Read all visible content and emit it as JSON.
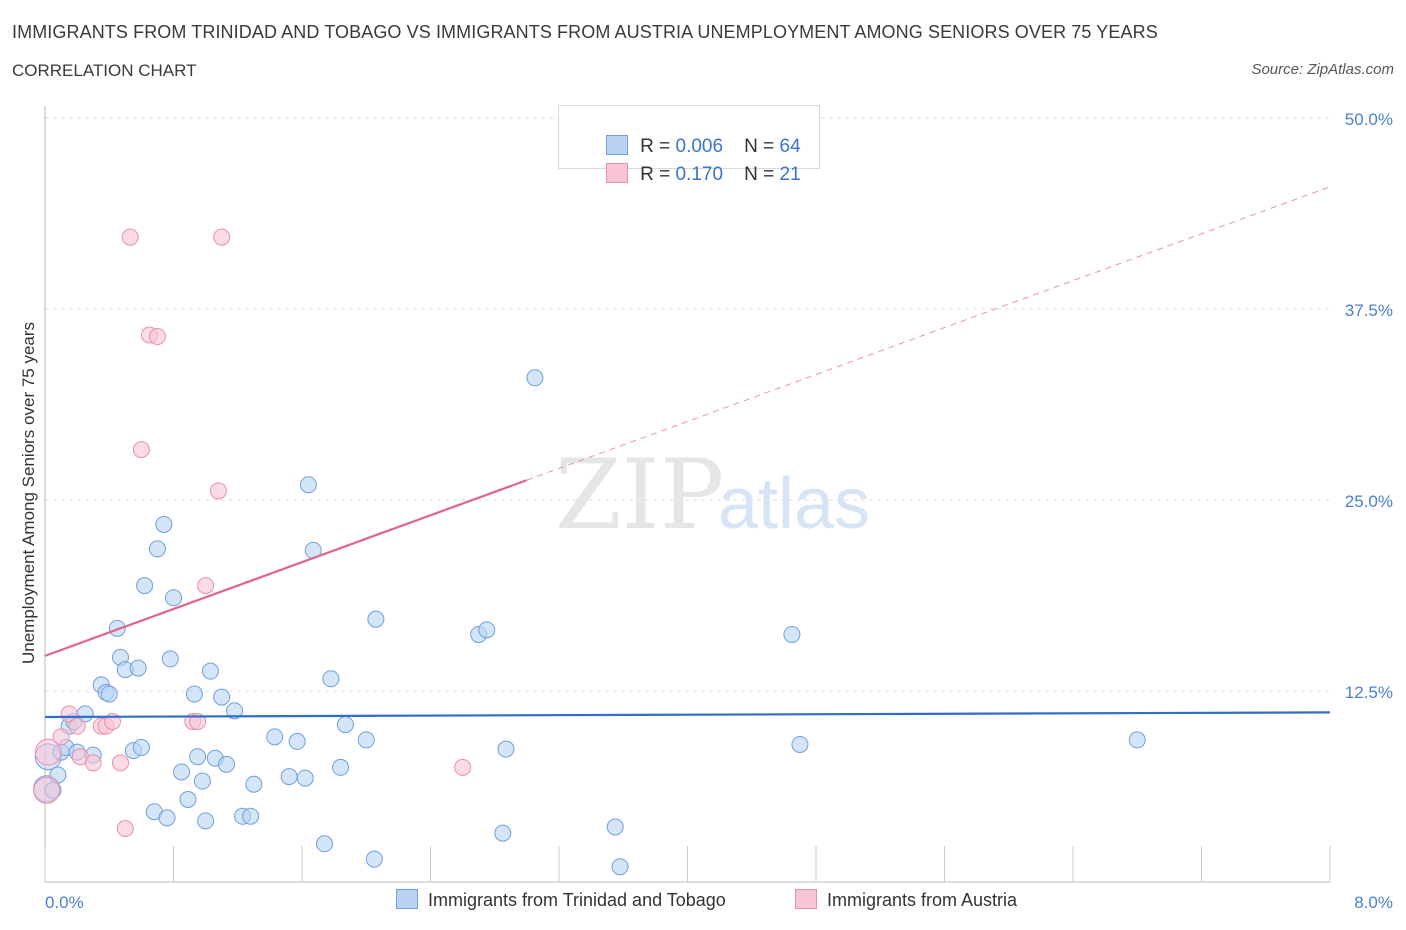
{
  "header": {
    "title": "IMMIGRANTS FROM TRINIDAD AND TOBAGO VS IMMIGRANTS FROM AUSTRIA UNEMPLOYMENT AMONG SENIORS OVER 75 YEARS",
    "subtitle": "CORRELATION CHART",
    "source": "Source: ZipAtlas.com"
  },
  "legend": {
    "rows": [
      {
        "r_label": "R = ",
        "r_value": "0.006",
        "n_label": "N = ",
        "n_value": "64"
      },
      {
        "r_label": "R = ",
        "r_value": "0.170",
        "n_label": "N = ",
        "n_value": "21"
      }
    ]
  },
  "colors": {
    "blue_fill": "#b9d3f4",
    "blue_stroke": "#6f9fdc",
    "blue_line": "#2f6fc6",
    "pink_fill": "#f8c5d5",
    "pink_stroke": "#e890ac",
    "pink_line": "#e0648e",
    "tick_text": "#4a7fd0",
    "grid": "#dcdcdc"
  },
  "watermark": {
    "zip": "ZIP",
    "atlas": "atlas"
  },
  "chart_data": {
    "type": "scatter",
    "xlabel": "",
    "ylabel": "Unemployment Among Seniors over 75 years",
    "xlim": [
      0,
      8
    ],
    "ylim": [
      0,
      50
    ],
    "x_tick_labels": [
      "0.0%",
      "8.0%"
    ],
    "y_ticks": [
      12.5,
      25.0,
      37.5,
      50.0
    ],
    "y_tick_labels": [
      "12.5%",
      "25.0%",
      "37.5%",
      "50.0%"
    ],
    "grid": true,
    "series": [
      {
        "name": "Immigrants from Trinidad and Tobago",
        "color": "blue",
        "trend": {
          "x": [
            0,
            8
          ],
          "y": [
            10.8,
            11.1
          ],
          "style": "solid"
        },
        "points": [
          [
            0.05,
            6.0
          ],
          [
            0.08,
            7.0
          ],
          [
            0.1,
            8.5
          ],
          [
            0.13,
            8.8
          ],
          [
            0.15,
            10.2
          ],
          [
            0.18,
            10.5
          ],
          [
            0.2,
            8.5
          ],
          [
            0.25,
            11.0
          ],
          [
            0.3,
            8.3
          ],
          [
            0.35,
            12.9
          ],
          [
            0.38,
            12.4
          ],
          [
            0.4,
            12.3
          ],
          [
            0.45,
            16.6
          ],
          [
            0.47,
            14.7
          ],
          [
            0.5,
            13.9
          ],
          [
            0.55,
            8.6
          ],
          [
            0.58,
            14.0
          ],
          [
            0.6,
            8.8
          ],
          [
            0.62,
            19.4
          ],
          [
            0.68,
            4.6
          ],
          [
            0.7,
            21.8
          ],
          [
            0.74,
            23.4
          ],
          [
            0.76,
            4.2
          ],
          [
            0.78,
            14.6
          ],
          [
            0.8,
            18.6
          ],
          [
            0.85,
            7.2
          ],
          [
            0.89,
            5.4
          ],
          [
            0.93,
            12.3
          ],
          [
            0.95,
            8.2
          ],
          [
            0.98,
            6.6
          ],
          [
            1.0,
            4.0
          ],
          [
            1.03,
            13.8
          ],
          [
            1.06,
            8.1
          ],
          [
            1.1,
            12.1
          ],
          [
            1.13,
            7.7
          ],
          [
            1.18,
            11.2
          ],
          [
            1.23,
            4.3
          ],
          [
            1.28,
            4.3
          ],
          [
            1.3,
            6.4
          ],
          [
            1.43,
            9.5
          ],
          [
            1.52,
            6.9
          ],
          [
            1.57,
            9.2
          ],
          [
            1.62,
            6.8
          ],
          [
            1.64,
            26.0
          ],
          [
            1.67,
            21.7
          ],
          [
            1.74,
            2.5
          ],
          [
            1.78,
            13.3
          ],
          [
            1.84,
            7.5
          ],
          [
            1.87,
            10.3
          ],
          [
            2.0,
            9.3
          ],
          [
            2.05,
            1.5
          ],
          [
            2.06,
            17.2
          ],
          [
            2.7,
            16.2
          ],
          [
            2.75,
            16.5
          ],
          [
            2.85,
            3.2
          ],
          [
            2.87,
            8.7
          ],
          [
            3.05,
            33.0
          ],
          [
            3.55,
            3.6
          ],
          [
            3.58,
            1.0
          ],
          [
            4.65,
            16.2
          ],
          [
            4.7,
            9.0
          ],
          [
            6.8,
            9.3
          ]
        ],
        "big_points": [
          [
            0.02,
            8.2
          ],
          [
            0.01,
            6.1
          ]
        ]
      },
      {
        "name": "Immigrants from Austria",
        "color": "pink",
        "trend": {
          "x": [
            0,
            3.0
          ],
          "y": [
            14.8,
            26.3
          ],
          "style": "solid",
          "extended_to": [
            8.0,
            45.5
          ]
        },
        "points": [
          [
            0.1,
            9.5
          ],
          [
            0.15,
            11.0
          ],
          [
            0.2,
            10.2
          ],
          [
            0.22,
            8.2
          ],
          [
            0.3,
            7.8
          ],
          [
            0.35,
            10.2
          ],
          [
            0.38,
            10.2
          ],
          [
            0.42,
            10.5
          ],
          [
            0.47,
            7.8
          ],
          [
            0.5,
            3.5
          ],
          [
            0.53,
            42.2
          ],
          [
            0.6,
            28.3
          ],
          [
            0.65,
            35.8
          ],
          [
            0.7,
            35.7
          ],
          [
            0.92,
            10.5
          ],
          [
            0.95,
            10.5
          ],
          [
            1.0,
            19.4
          ],
          [
            1.08,
            25.6
          ],
          [
            1.1,
            42.2
          ],
          [
            2.6,
            7.5
          ]
        ],
        "big_points": [
          [
            0.02,
            8.5
          ],
          [
            0.01,
            6.0
          ]
        ]
      }
    ]
  },
  "bottom_legend": {
    "items": [
      "Immigrants from Trinidad and Tobago",
      "Immigrants from Austria"
    ]
  }
}
